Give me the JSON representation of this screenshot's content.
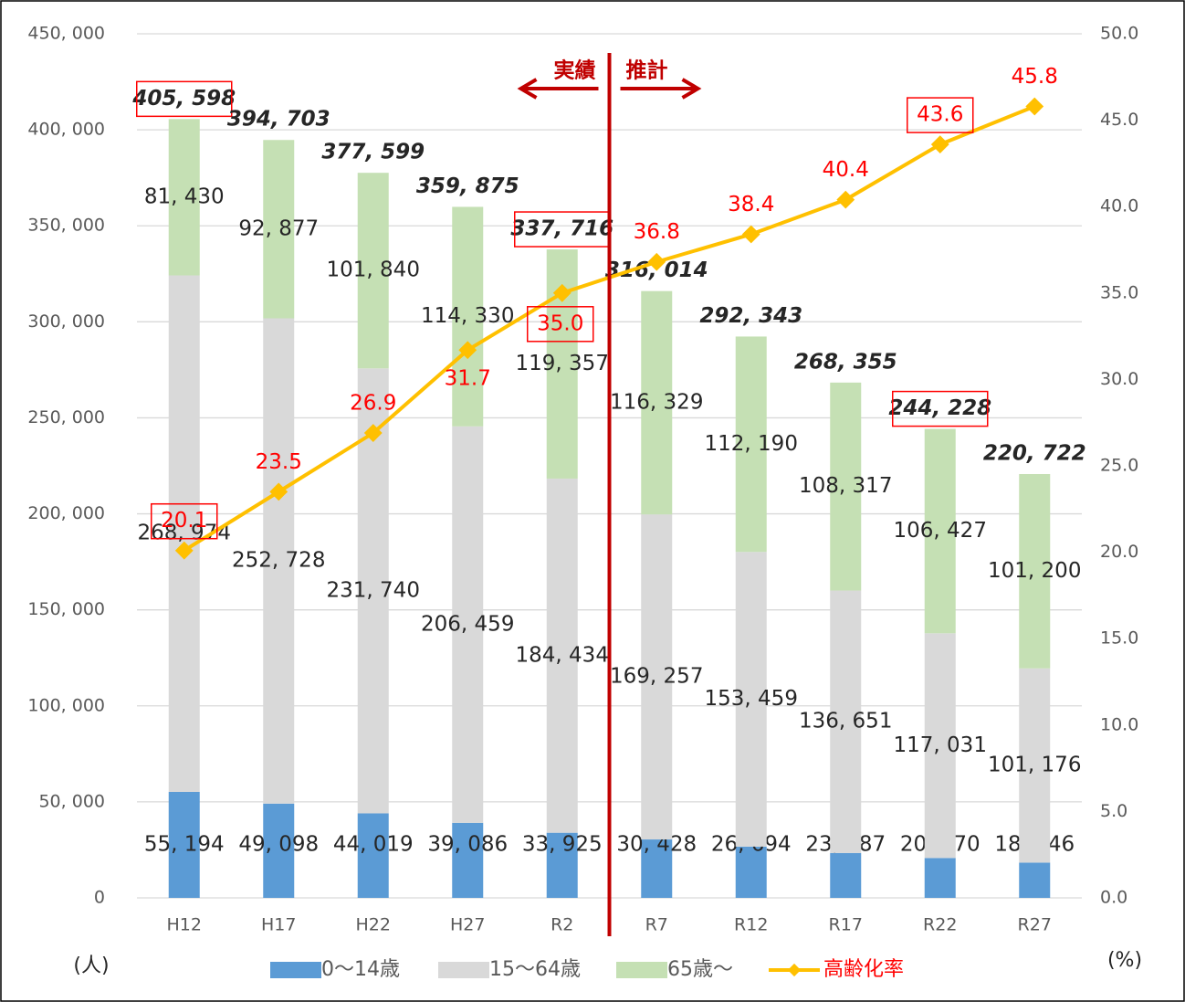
{
  "chart_data": {
    "type": "stacked-bar-line",
    "categories": [
      "H12",
      "H17",
      "H22",
      "H27",
      "R2",
      "R7",
      "R12",
      "R17",
      "R22",
      "R27"
    ],
    "series": [
      {
        "name": "0～14歳",
        "color": "#5b9bd5",
        "values": [
          55194,
          49098,
          44019,
          39086,
          33925,
          30428,
          26694,
          23387,
          20770,
          18346
        ],
        "value_labels": [
          "55, 194",
          "49, 098",
          "44, 019",
          "39, 086",
          "33, 925",
          "30, 428",
          "26, 694",
          "23, 387",
          "20, 770",
          "18, 346"
        ]
      },
      {
        "name": "15～64歳",
        "color": "#d9d9d9",
        "values": [
          268974,
          252728,
          231740,
          206459,
          184434,
          169257,
          153459,
          136651,
          117031,
          101176
        ],
        "value_labels": [
          "268, 974",
          "252, 728",
          "231, 740",
          "206, 459",
          "184, 434",
          "169, 257",
          "153, 459",
          "136, 651",
          "117, 031",
          "101, 176"
        ]
      },
      {
        "name": "65歳～",
        "color": "#c5e0b4",
        "values": [
          81430,
          92877,
          101840,
          114330,
          119357,
          116329,
          112190,
          108317,
          106427,
          101200
        ],
        "value_labels": [
          "81, 430",
          "92, 877",
          "101, 840",
          "114, 330",
          "119, 357",
          "116, 329",
          "112, 190",
          "108, 317",
          "106, 427",
          "101, 200"
        ]
      },
      {
        "name": "高齢化率",
        "color": "#ffc000",
        "axis": "y2",
        "values": [
          20.1,
          23.5,
          26.9,
          31.7,
          35.0,
          36.8,
          38.4,
          40.4,
          43.6,
          45.8
        ],
        "value_labels": [
          "20.1",
          "23.5",
          "26.9",
          "31.7",
          "35.0",
          "36.8",
          "38.4",
          "40.4",
          "43.6",
          "45.8"
        ]
      }
    ],
    "totals": [
      405598,
      394703,
      377599,
      359875,
      337716,
      316014,
      292343,
      268355,
      244228,
      220722
    ],
    "total_labels": [
      "405, 598",
      "394, 703",
      "377, 599",
      "359, 875",
      "337, 716",
      "316, 014",
      "292, 343",
      "268, 355",
      "244, 228",
      "220, 722"
    ],
    "highlight_indices": [
      0,
      4,
      8
    ],
    "divider_after_index": 4,
    "annotations": [
      "実績",
      "推計"
    ],
    "ylabel": "(人)",
    "y2label": "(%)",
    "ylim": [
      0,
      450000
    ],
    "yticks": [
      {
        "value": 0,
        "label": "0"
      },
      {
        "value": 50000,
        "label": "50, 000"
      },
      {
        "value": 100000,
        "label": "100, 000"
      },
      {
        "value": 150000,
        "label": "150, 000"
      },
      {
        "value": 200000,
        "label": "200, 000"
      },
      {
        "value": 250000,
        "label": "250, 000"
      },
      {
        "value": 300000,
        "label": "300, 000"
      },
      {
        "value": 350000,
        "label": "350, 000"
      },
      {
        "value": 400000,
        "label": "400, 000"
      },
      {
        "value": 450000,
        "label": "450, 000"
      }
    ],
    "y2lim": [
      0,
      50
    ],
    "y2ticks": [
      {
        "value": 0,
        "label": "0.0"
      },
      {
        "value": 5,
        "label": "5.0"
      },
      {
        "value": 10,
        "label": "10.0"
      },
      {
        "value": 15,
        "label": "15.0"
      },
      {
        "value": 20,
        "label": "20.0"
      },
      {
        "value": 25,
        "label": "25.0"
      },
      {
        "value": 30,
        "label": "30.0"
      },
      {
        "value": 35,
        "label": "35.0"
      },
      {
        "value": 40,
        "label": "40.0"
      },
      {
        "value": 45,
        "label": "45.0"
      },
      {
        "value": 50,
        "label": "50.0"
      }
    ],
    "grid": true,
    "legend": "bottom"
  }
}
